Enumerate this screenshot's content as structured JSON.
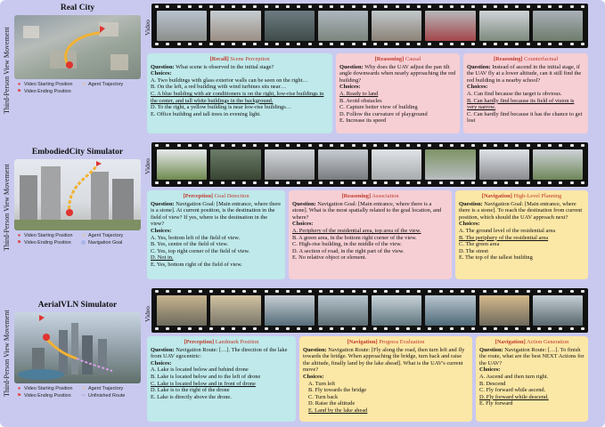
{
  "side_label": "Third-Person View Movement",
  "video_label": "Video",
  "legend_labels": {
    "start": "Video Starting Position",
    "end": "Video Ending Position",
    "traj": "Agent Trajectory",
    "goal": "Navigation Goal",
    "unfinished": "Unfinished Route"
  },
  "sections": [
    {
      "title": "Real City",
      "boxes": [
        {
          "tag": "[Recall]",
          "sub": "Scene Perception",
          "question": "What scene is observed in the initial stage?",
          "options": [
            "A. Two buildings with glass exterior walls can be seen on the right…",
            "B. On the left, a red building with wind turbines sits near…",
            "C. A blue building with air conditioners is on the right, low-rise buildings in the center, and tall white buildings in the background.",
            "D. To the right, a yellow building is near low-rise buildings…",
            "E. Office building and tall trees in evening light."
          ]
        },
        {
          "tag": "[Reasoning]",
          "sub": "Causal",
          "question": "Why does the UAV adjust the pan tilt angle downwards when nearly approaching the red building?",
          "options": [
            "A. Ready to land",
            "B. Avoid obstacles",
            "C. Capture better view of building",
            "D. Follow the curvature of playground",
            "E. Increase its speed"
          ]
        },
        {
          "tag": "[Reasoning]",
          "sub": "Counterfactual",
          "question": "Instead of ascend in the initial stage, if the UAV fly at a lower altitude, can it still find the red building in a nearby school?",
          "options": [
            "A. Can find because the target is obvious.",
            "B. Can hardly find because its field of vision is very narrow.",
            "C. Can hardly find because it has the chance to get lost"
          ]
        }
      ]
    },
    {
      "title": "EmbodiedCity Simulator",
      "boxes": [
        {
          "tag": "[Perception]",
          "sub": "Goal Detection",
          "question": "Navigation Goal: [Main entrance, where there is a stone]. At current position, is the destination in the field of view? If yes, where is the destination in the view?",
          "options": [
            "A. Yes, bottom left of the field of view.",
            "B. Yes, centre of the field of view.",
            "C. Yes, top right corner of the field of view.",
            "D. Not in.",
            "E. Yes, bottom right of the field of view."
          ]
        },
        {
          "tag": "[Reasoning]",
          "sub": "Association",
          "question": "Navigation Goal: [Main entrance, where there is a stone]. What is the most spatially related to the goal location, and where?",
          "options": [
            "A. Periphery of the residential area, top area of the view.",
            "B. A green area, in the bottom right corner of the view.",
            "C. High-rise building, in the middle of the view.",
            "D. A section of road, in the right part of the view.",
            "E. No relative object or element."
          ]
        },
        {
          "tag": "[Navigation]",
          "sub": "High-Level Planning",
          "question": "Navigation Goal: [Main entrance, where there is a stone]. To reach the destination from current position, which should the UAV approach next?",
          "options": [
            "A. The ground level of the residential area",
            "B. The periphery of the residential area",
            "C. The green area",
            "D. The street",
            "E. The top of the tallest building"
          ]
        }
      ]
    },
    {
      "title": "AerialVLN Simulator",
      "boxes": [
        {
          "tag": "[Perception]",
          "sub": "Landmark Position",
          "question": "Navigation Route: […]. The direction of the lake from UAV egocentric:",
          "options": [
            "A. Lake is located below and behind drone",
            "B. Lake is located below and to the left of drone",
            "C. Lake is located below and in front of drone",
            "D. Lake is to the right of the drone",
            "E. Lake is directly above the drone."
          ]
        },
        {
          "tag": "[Navigation]",
          "sub": "Progress Evaluation",
          "question": "Navigation Route: [Fly along the road, then turn left and fly towards the bridge. When approaching the bridge, turn back and raise the altitude, finally land by the lake ahead]. What is the UAV's current move?",
          "options": [
            "A. Turn left",
            "B. Fly towards the bridge",
            "C. Turn back",
            "D. Raise the altitude",
            "E. Land by the lake ahead"
          ]
        },
        {
          "tag": "[Navigation]",
          "sub": "Action Generation",
          "question": "Navigation Route: […]. To finish the route, what are the best NEXT Actions for the UAV?",
          "options": [
            "A. Ascend and then turn right.",
            "B. Descend",
            "C. Fly forward while ascend.",
            "D. Fly forward while descend.",
            "E. Fly forward"
          ]
        }
      ]
    }
  ],
  "labels": {
    "question": "Question:",
    "choices": "Choices:"
  }
}
